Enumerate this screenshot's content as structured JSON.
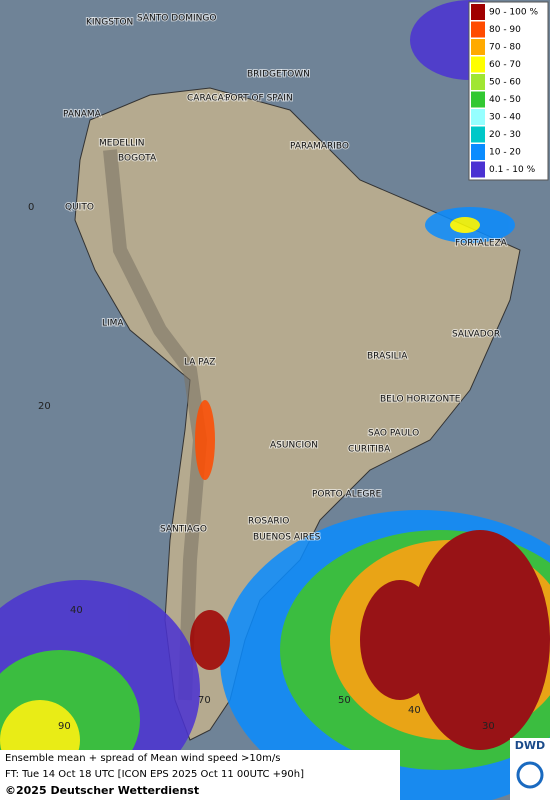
{
  "map": {
    "cities": [
      "KINGSTON",
      "SANTO DOMINGO",
      "BRIDGETOWN",
      "CARACAS",
      "PORT OF SPAIN",
      "PANAMA",
      "MEDELLIN",
      "BOGOTA",
      "PARAMARIBO",
      "QUITO",
      "FORTALEZA",
      "LIMA",
      "SALVADOR",
      "BRASILIA",
      "LA PAZ",
      "BELO HORIZONTE",
      "SAO PAULO",
      "ASUNCION",
      "CURITIBA",
      "PORTO ALEGRE",
      "ROSARIO",
      "SANTIAGO",
      "BUENOS AIRES"
    ],
    "grid_labels": [
      "0",
      "20",
      "40",
      "90",
      "70",
      "50",
      "40",
      "30"
    ],
    "legend": [
      {
        "label": "90 - 100 %",
        "color": "#a00000"
      },
      {
        "label": "80 - 90",
        "color": "#ff4b00"
      },
      {
        "label": "70 - 80",
        "color": "#ffaa00"
      },
      {
        "label": "60 - 70",
        "color": "#ffff00"
      },
      {
        "label": "50 - 60",
        "color": "#a0e632"
      },
      {
        "label": "40 - 50",
        "color": "#32c832"
      },
      {
        "label": "30 - 40",
        "color": "#96ffff"
      },
      {
        "label": "20 - 30",
        "color": "#00c8c8"
      },
      {
        "label": "10 - 20",
        "color": "#0a8cff"
      },
      {
        "label": "0.1 - 10 %",
        "color": "#4b32d2"
      }
    ],
    "caption": [
      "Ensemble mean + spread of Mean wind speed >10m/s",
      "FT: Tue 14 Oct 18 UTC [ICON EPS 2025 Oct 11 00UTC +90h]"
    ],
    "copyright": "©2025 Deutscher Wetterdienst",
    "logo": "DWD"
  }
}
